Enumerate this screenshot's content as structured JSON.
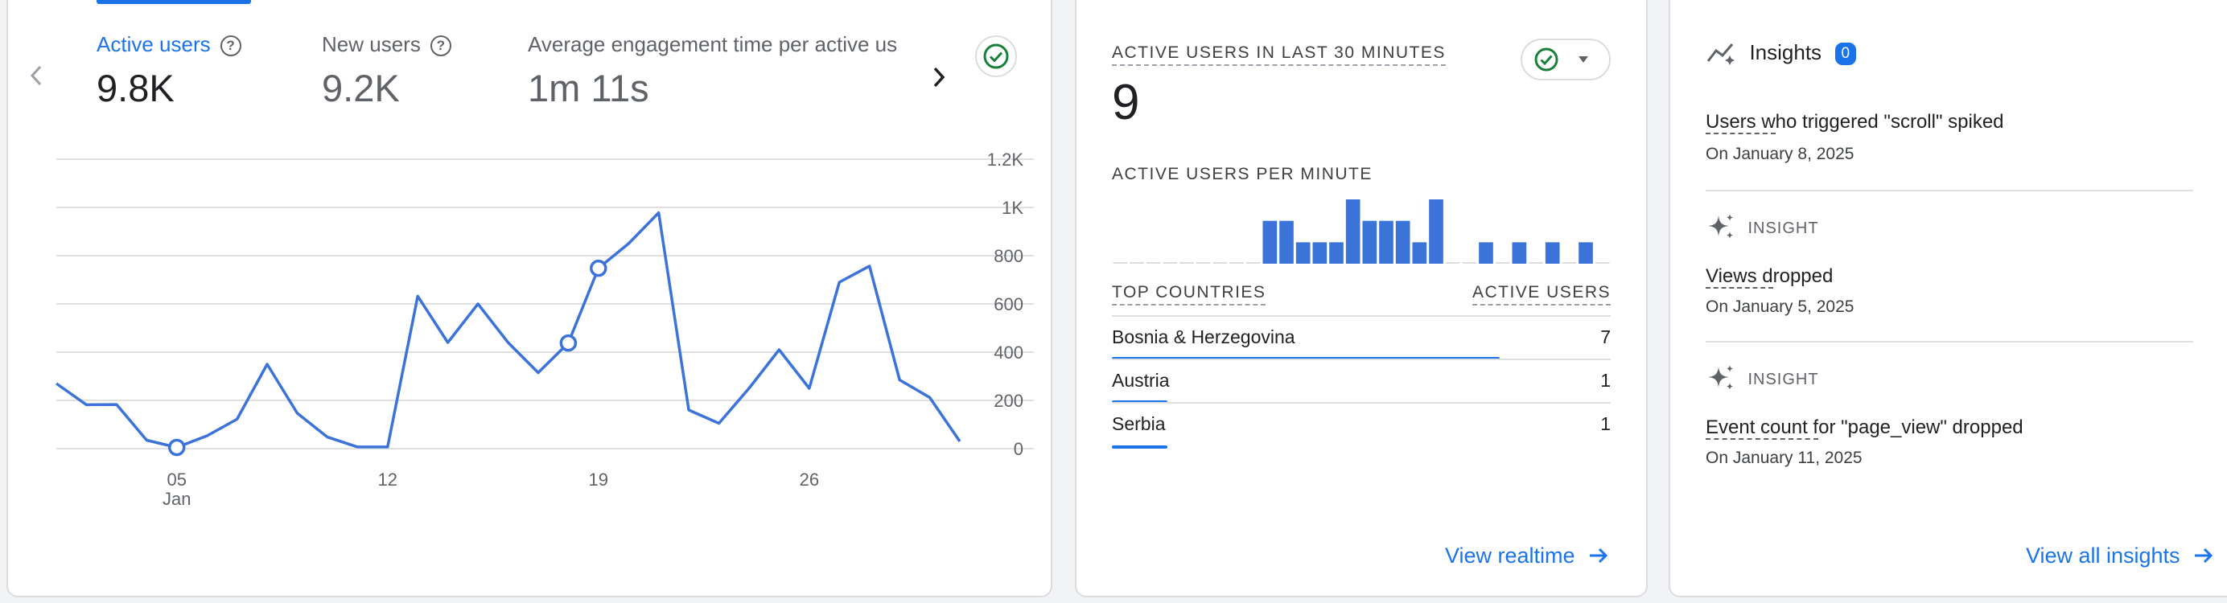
{
  "overview": {
    "metrics": [
      {
        "label": "Active users",
        "value": "9.8K",
        "active": true
      },
      {
        "label": "New users",
        "value": "9.2K",
        "active": false
      },
      {
        "label": "Average engagement time per active us",
        "value": "1m 11s",
        "active": false
      }
    ]
  },
  "chart_data": {
    "type": "line",
    "title": "",
    "x_tick_labels": [
      "05",
      "12",
      "19",
      "26"
    ],
    "x_sublabel": "Jan",
    "y_tick_labels": [
      "1.2K",
      "1K",
      "800",
      "600",
      "400",
      "200",
      "0"
    ],
    "ylim": [
      0,
      1200
    ],
    "x": [
      1,
      2,
      3,
      4,
      5,
      6,
      7,
      8,
      9,
      10,
      11,
      12,
      13,
      14,
      15,
      16,
      17,
      18,
      19,
      20,
      21,
      22,
      23,
      24,
      25,
      26,
      27,
      28,
      29,
      30,
      31
    ],
    "values": [
      270,
      182,
      183,
      35,
      5,
      53,
      122,
      350,
      147,
      48,
      7,
      7,
      632,
      440,
      600,
      440,
      315,
      438,
      748,
      850,
      978,
      160,
      105,
      250,
      410,
      250,
      690,
      757,
      285,
      212,
      30
    ],
    "highlighted_points": [
      5,
      18,
      19
    ],
    "grid": true
  },
  "realtime": {
    "title": "ACTIVE USERS IN LAST 30 MINUTES",
    "count": "9",
    "per_minute_label": "ACTIVE USERS PER MINUTE",
    "per_minute_values": [
      0,
      0,
      0,
      0,
      0,
      0,
      0,
      0,
      0,
      2,
      2,
      1,
      1,
      1,
      3,
      2,
      2,
      2,
      1,
      3,
      0,
      0,
      1,
      0,
      1,
      0,
      1,
      0,
      1,
      0
    ],
    "countries_header": "TOP COUNTRIES",
    "users_header": "ACTIVE USERS",
    "countries": [
      {
        "name": "Bosnia & Herzegovina",
        "value": "7",
        "share": 0.7778
      },
      {
        "name": "Austria",
        "value": "1",
        "share": 0.1111
      },
      {
        "name": "Serbia",
        "value": "1",
        "share": 0.1111
      }
    ],
    "view_link": "View realtime"
  },
  "insights": {
    "title": "Insights",
    "badge": "0",
    "items": [
      {
        "tag": "",
        "title_underlined": "Users w",
        "title_rest": "ho triggered \"scroll\" spiked",
        "date": "On January 8, 2025"
      },
      {
        "tag": "INSIGHT",
        "title_underlined": "Views d",
        "title_rest": "ropped",
        "date": "On January 5, 2025"
      },
      {
        "tag": "INSIGHT",
        "title_underlined": "Event count f",
        "title_rest": "or \"page_view\" dropped",
        "date": "On January 11, 2025"
      }
    ],
    "view_link": "View all insights"
  },
  "colors": {
    "accent": "#1a73e8",
    "line": "#3b73d9",
    "grid": "#e0e0e0",
    "success": "#188038"
  }
}
